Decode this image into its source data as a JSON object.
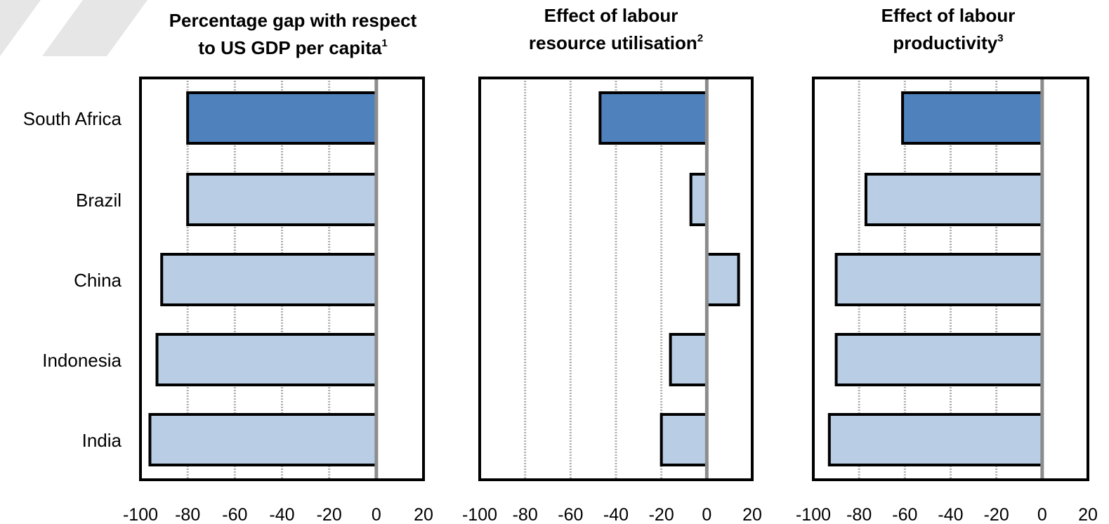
{
  "colors": {
    "highlight": "#4f81bd",
    "bar": "#b9cde5",
    "outline": "#000000",
    "zero_line": "#8c8c8c",
    "grid": "#b0b0b0",
    "decor": "#e6e6e6"
  },
  "chart_data": {
    "type": "bar",
    "orientation": "horizontal",
    "categories": [
      "South Africa",
      "Brazil",
      "China",
      "Indonesia",
      "India"
    ],
    "highlight_category": "South Africa",
    "xlim": [
      -100,
      20
    ],
    "xticks": [
      "-100",
      "-80",
      "-60",
      "-40",
      "-20",
      "0",
      "20"
    ],
    "panels": [
      {
        "title": "Percentage gap with respect to US GDP per capita",
        "title_lines": [
          "Percentage gap with respect",
          "to US GDP per capita"
        ],
        "footnote": "1",
        "values": [
          -80,
          -80,
          -91,
          -93,
          -96
        ]
      },
      {
        "title": "Effect of labour resource utilisation",
        "title_lines": [
          "Effect of labour",
          "resource utilisation"
        ],
        "footnote": "2",
        "values": [
          -47,
          -7,
          14,
          -16,
          -20
        ]
      },
      {
        "title": "Effect of labour productivity",
        "title_lines": [
          "Effect of labour",
          "productivity"
        ],
        "footnote": "3",
        "values": [
          -61,
          -77,
          -90,
          -90,
          -93
        ]
      }
    ]
  }
}
